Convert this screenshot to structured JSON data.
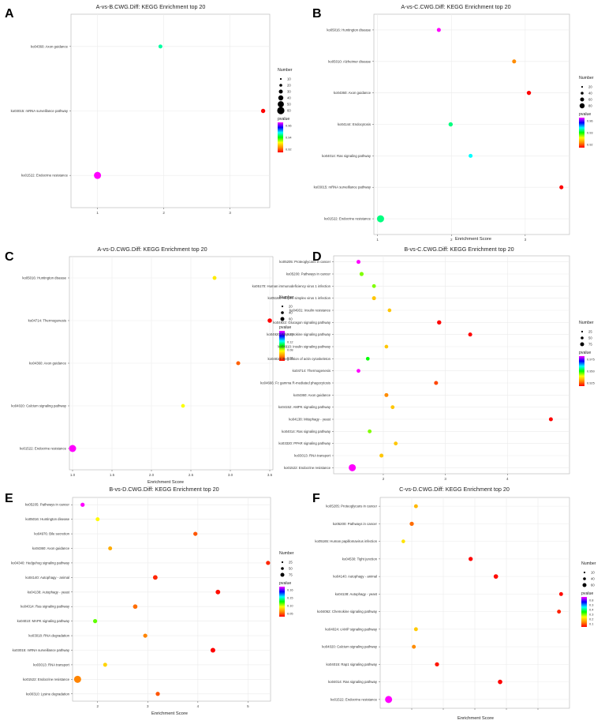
{
  "legend_labels": {
    "number": "Number",
    "pvalue": "pvalue"
  },
  "colors": {
    "panel_border": "#b3b3b3",
    "grid": "#ebebeb",
    "gradient_stops": [
      "#ff0000",
      "#ff8c00",
      "#ffff00",
      "#00ff00",
      "#00ffff",
      "#0000ff",
      "#ff00ff"
    ]
  },
  "chart_data": [
    {
      "type": "scatter",
      "panel_letter": "A",
      "title": "A-vs-B.CWG.Diff: KEGG Enrichment top 20",
      "xlabel": "",
      "xlim": [
        0.6,
        3.6
      ],
      "xticks": [
        "1",
        "2",
        "3"
      ],
      "categories": [
        "ko04360: Axon guidance",
        "ko03015: mRNA surveillance pathway",
        "ko01522: Endocrine resistance"
      ],
      "x": [
        1.95,
        3.5,
        1.0
      ],
      "number": [
        7,
        9,
        41
      ],
      "pvalue": [
        0.903,
        0.8,
        0.97
      ],
      "size_legend": [
        "10",
        "20",
        "30",
        "40",
        "50",
        "60"
      ],
      "pvalue_ticks": [
        "0.96",
        "0.94",
        "0.92"
      ]
    },
    {
      "type": "scatter",
      "panel_letter": "B",
      "title": "A-vs-C.CWG.Diff: KEGG Enrichment top 20",
      "xlabel": "Enrichment Score",
      "xlim": [
        0.95,
        3.6
      ],
      "xticks": [
        "1",
        "2",
        "3"
      ],
      "categories": [
        "ko05016: Huntington disease",
        "ko05010: Alzheimer disease",
        "ko04360: Axon guidance",
        "ko04144: Endocytosis",
        "ko04014: Ras signaling pathway",
        "ko03015: mRNA surveillance pathway",
        "ko01522: Endocrine resistance"
      ],
      "x": [
        1.83,
        2.85,
        3.05,
        1.99,
        2.26,
        3.49,
        1.04
      ],
      "number": [
        8,
        8,
        10,
        10,
        8,
        8,
        45
      ],
      "pvalue": [
        0.97,
        0.92,
        0.91,
        0.945,
        0.95,
        0.91,
        0.945
      ],
      "size_legend": [
        "20",
        "40",
        "60",
        "80"
      ],
      "pvalue_ticks": [
        "0.96",
        "0.93",
        "0.92"
      ]
    },
    {
      "type": "scatter",
      "panel_letter": "C",
      "title": "A-vs-D.CWG.Diff: KEGG Enrichment top 20",
      "xlabel": "Enrichment Score",
      "xlim": [
        0.96,
        3.54
      ],
      "xticks": [
        "1.0",
        "1.5",
        "2.0",
        "2.5",
        "3.0",
        "3.5"
      ],
      "categories": [
        "ko05016: Huntington disease",
        "ko04714: Thermogenesis",
        "ko04360: Axon guidance",
        "ko04020: Calcium signaling pathway",
        "ko01522: Endocrine resistance"
      ],
      "x": [
        2.8,
        3.5,
        3.1,
        2.4,
        1.0
      ],
      "number": [
        8,
        12,
        9,
        7,
        50
      ],
      "pvalue": [
        0.05,
        0.002,
        0.02,
        0.055,
        0.16
      ],
      "size_legend": [
        "20",
        "40",
        "60"
      ],
      "pvalue_ticks": [
        "0.16",
        "0.12",
        "0.08",
        "0.04"
      ]
    },
    {
      "type": "scatter",
      "panel_letter": "D",
      "title": "B-vs-C.CWG.Diff: KEGG Enrichment top 20",
      "xlabel": "",
      "xlim": [
        1.2,
        5.0
      ],
      "xticks": [
        "2",
        "3",
        "4"
      ],
      "categories": [
        "ko05205: Proteoglycans in cancer",
        "ko05200: Pathways in cancer",
        "ko05170: Human immunodeficiency virus 1 infection",
        "ko05168: Herpes simplex virus 1 infection",
        "ko04931: Insulin resistance",
        "ko04922: Glucagon signaling pathway",
        "ko04920: Adipocytokine signaling pathway",
        "ko04910: Insulin signaling pathway",
        "ko04810: Regulation of actin cytoskeleton",
        "ko04714: Thermogenesis",
        "ko04666: Fc gamma R-mediated phagocytosis",
        "ko04360: Axon guidance",
        "ko04152: AMPK signaling pathway",
        "ko04138: Mitophagy - yeast",
        "ko04014: Ras signaling pathway",
        "ko03320: PPAR signaling pathway",
        "ko03013: RNA transport",
        "ko01522: Endocrine resistance"
      ],
      "x": [
        1.6,
        1.65,
        1.85,
        1.85,
        2.1,
        2.9,
        3.4,
        2.05,
        1.75,
        1.6,
        2.85,
        2.05,
        2.15,
        4.7,
        1.78,
        2.2,
        1.97,
        1.5
      ],
      "number": [
        8,
        9,
        7,
        8,
        6,
        10,
        8,
        6,
        6,
        7,
        8,
        8,
        7,
        8,
        7,
        7,
        8,
        46
      ],
      "pvalue": [
        0.975,
        0.94,
        0.94,
        0.93,
        0.93,
        0.915,
        0.915,
        0.93,
        0.945,
        0.975,
        0.92,
        0.925,
        0.93,
        0.915,
        0.94,
        0.93,
        0.93,
        0.975
      ],
      "size_legend": [
        "25",
        "50",
        "75"
      ],
      "pvalue_ticks": [
        "0.975",
        "0.950",
        "0.925"
      ]
    },
    {
      "type": "scatter",
      "panel_letter": "E",
      "title": "B-vs-D.CWG.Diff: KEGG Enrichment top 20",
      "xlabel": "Enrichment Score",
      "xlim": [
        1.5,
        5.45
      ],
      "xticks": [
        "2",
        "3",
        "4",
        "5"
      ],
      "categories": [
        "ko05205: Pathways in cancer",
        "ko05016: Huntington disease",
        "ko04976: Bile secretion",
        "ko04360: Axon guidance",
        "ko04340: Hedgehog signaling pathway",
        "ko04140: Autophagy - animal",
        "ko04138: Autophagy - yeast",
        "ko04014: Ras signaling pathway",
        "ko04010: MAPK signaling pathway",
        "ko03018: RNA degradation",
        "ko03015: mRNA surveillance pathway",
        "ko03013: RNA transport",
        "ko01522: Endocrine resistance",
        "ko00310: Lysine degradation"
      ],
      "x": [
        1.7,
        2.0,
        3.95,
        2.25,
        5.4,
        3.15,
        4.4,
        2.75,
        1.95,
        2.95,
        4.3,
        2.15,
        1.6,
        3.2
      ],
      "number": [
        7,
        6,
        7,
        6,
        7,
        10,
        10,
        9,
        7,
        7,
        11,
        6,
        35,
        7
      ],
      "pvalue": [
        0.18,
        0.06,
        0.02,
        0.04,
        0.01,
        0.01,
        0.005,
        0.025,
        0.08,
        0.03,
        0.002,
        0.05,
        0.03,
        0.02
      ],
      "size_legend": [
        "25",
        "50",
        "75"
      ],
      "pvalue_ticks": [
        "0.16",
        "0.15",
        "0.10",
        "0.05"
      ]
    },
    {
      "type": "scatter",
      "panel_letter": "F",
      "title": "C-vs-D.CWG.Diff: KEGG Enrichment top 20",
      "xlabel": "Enrichment Score",
      "xlim": [
        1.75,
        6.25
      ],
      "xticks": [],
      "categories": [
        "ko05205: Proteoglycans in cancer",
        "ko05200: Pathways in cancer",
        "ko05165: Human papillomavirus infection",
        "ko04530: Tight junction",
        "ko04140: Autophagy - animal",
        "ko04138: Autophagy - yeast",
        "ko04062: Chemokine signaling pathway",
        "ko04024: cAMP signaling pathway",
        "ko04020: Calcium signaling pathway",
        "ko04015: Rap1 signaling pathway",
        "ko04014: Ras signaling pathway",
        "ko01522: Endocrine resistance"
      ],
      "x": [
        2.6,
        2.5,
        2.3,
        3.9,
        4.5,
        6.05,
        6.0,
        2.6,
        2.55,
        3.1,
        4.6,
        1.95
      ],
      "number": [
        6,
        8,
        5,
        8,
        10,
        6,
        6,
        6,
        6,
        8,
        10,
        38
      ],
      "pvalue": [
        0.2,
        0.12,
        0.25,
        0.02,
        0.03,
        0.03,
        0.05,
        0.22,
        0.15,
        0.04,
        0.02,
        0.8
      ],
      "size_legend": [
        "10",
        "40",
        "60"
      ],
      "pvalue_ticks": [
        "0.8",
        "0.3",
        "0.4",
        "0.3",
        "0.2",
        "0.1"
      ]
    }
  ]
}
